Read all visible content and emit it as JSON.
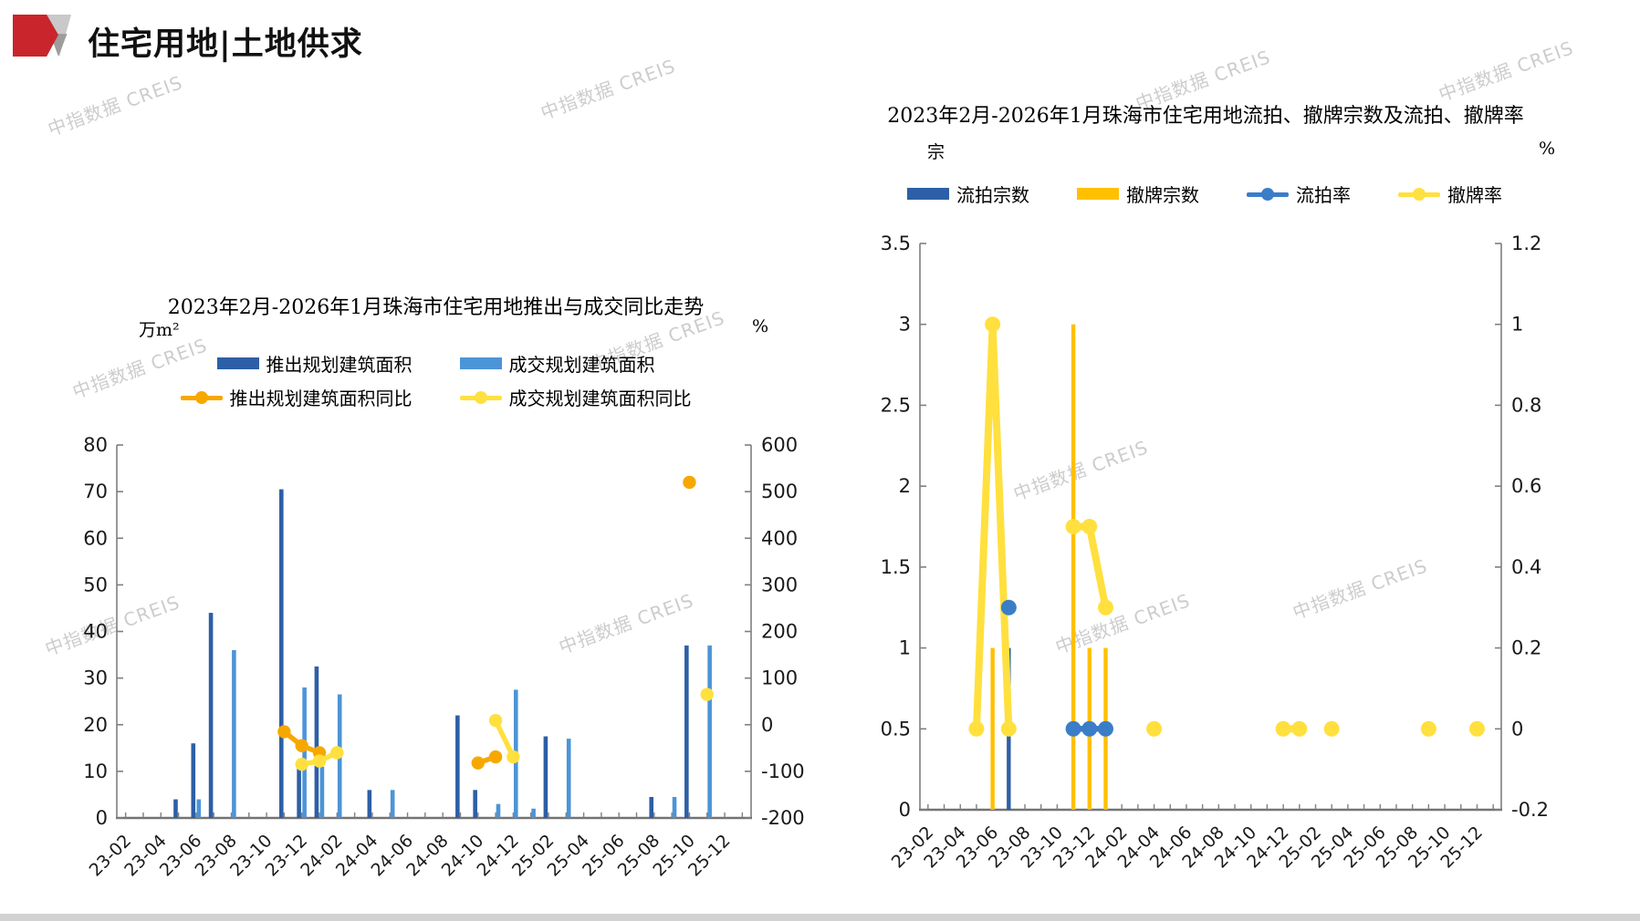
{
  "page": {
    "header_title": "住宅用地|土地供求",
    "watermark_text": "中指数据 CREIS"
  },
  "chart_data": [
    {
      "id": "supply-transaction",
      "type": "bar+line combo",
      "title": "2023年2月-2026年1月珠海市住宅用地推出与成交同比走势",
      "unit_left": "万m²",
      "unit_right": "%",
      "x_first": "23-02",
      "months": 36,
      "x_ticks": [
        "23-02",
        "23-04",
        "23-06",
        "23-08",
        "23-10",
        "23-12",
        "24-02",
        "24-04",
        "24-06",
        "24-08",
        "24-10",
        "24-12",
        "25-02",
        "25-04",
        "25-06",
        "25-08",
        "25-10",
        "25-12"
      ],
      "y_left": {
        "min": 0,
        "max": 80,
        "step": 10
      },
      "y_right": {
        "min": -200,
        "max": 600,
        "step": 100
      },
      "legend": [
        {
          "label": "推出规划建筑面积",
          "marker": "bar",
          "color": "#2d5fa6",
          "row": 0
        },
        {
          "label": "成交规划建筑面积",
          "marker": "bar",
          "color": "#4c94d8",
          "row": 0
        },
        {
          "label": "推出规划建筑面积同比",
          "marker": "line",
          "color": "#f7a800",
          "row": 1
        },
        {
          "label": "成交规划建筑面积同比",
          "marker": "line",
          "color": "#ffe03e",
          "row": 1
        }
      ],
      "series": [
        {
          "name": "推出规划建筑面积",
          "kind": "bar",
          "axis": "left",
          "color": "#2d5fa6",
          "pair": "L",
          "data": [
            [
              "23-05",
              4
            ],
            [
              "23-06",
              16
            ],
            [
              "23-07",
              44
            ],
            [
              "23-11",
              70.5
            ],
            [
              "23-12",
              12
            ],
            [
              "24-01",
              32.5
            ],
            [
              "24-04",
              6
            ],
            [
              "24-09",
              22
            ],
            [
              "24-10",
              6
            ],
            [
              "25-02",
              17.5
            ],
            [
              "25-08",
              4.5
            ],
            [
              "25-10",
              37
            ]
          ]
        },
        {
          "name": "成交规划建筑面积",
          "kind": "bar",
          "axis": "left",
          "color": "#4c94d8",
          "pair": "R",
          "data": [
            [
              "23-06",
              4
            ],
            [
              "23-08",
              36
            ],
            [
              "23-12",
              28
            ],
            [
              "24-01",
              11
            ],
            [
              "24-02",
              26.5
            ],
            [
              "24-05",
              6
            ],
            [
              "24-11",
              3
            ],
            [
              "24-12",
              27.5
            ],
            [
              "25-01",
              2
            ],
            [
              "25-03",
              17
            ],
            [
              "25-09",
              4.5
            ],
            [
              "25-11",
              37
            ]
          ]
        },
        {
          "name": "推出规划建筑面积同比",
          "kind": "line",
          "axis": "right",
          "color": "#f7a800",
          "width": 5.5,
          "dot": 7.2,
          "segments": [
            [
              [
                "23-11",
                -15
              ],
              [
                "23-12",
                -45
              ],
              [
                "24-01",
                -60
              ]
            ],
            [
              [
                "24-10",
                -82
              ],
              [
                "24-11",
                -69
              ]
            ],
            [
              [
                "25-10",
                520
              ]
            ]
          ]
        },
        {
          "name": "成交规划建筑面积同比",
          "kind": "line",
          "axis": "right",
          "color": "#ffe03e",
          "width": 5.5,
          "dot": 7.2,
          "segments": [
            [
              [
                "23-12",
                -85
              ],
              [
                "24-01",
                -78
              ],
              [
                "24-02",
                -60
              ]
            ],
            [
              [
                "24-11",
                9
              ],
              [
                "24-12",
                -69
              ]
            ],
            [
              [
                "25-11",
                65
              ]
            ]
          ]
        }
      ]
    },
    {
      "id": "auction-withdrawal",
      "type": "bar+line combo",
      "title": "2023年2月-2026年1月珠海市住宅用地流拍、撤牌宗数及流拍、撤牌率",
      "unit_left": "宗",
      "unit_right": "%",
      "x_first": "23-02",
      "months": 36,
      "x_ticks": [
        "23-02",
        "23-04",
        "23-06",
        "23-08",
        "23-10",
        "23-12",
        "24-02",
        "24-04",
        "24-06",
        "24-08",
        "24-10",
        "24-12",
        "25-02",
        "25-04",
        "25-06",
        "25-08",
        "25-10",
        "25-12"
      ],
      "y_left": {
        "min": 0,
        "max": 3.5,
        "step": 0.5
      },
      "y_right": {
        "min": -0.2,
        "max": 1.2,
        "step": 0.2
      },
      "legend": [
        {
          "label": "流拍宗数",
          "marker": "bar",
          "color": "#2d5fa6",
          "row": 0
        },
        {
          "label": "撤牌宗数",
          "marker": "bar",
          "color": "#ffc000",
          "row": 0
        },
        {
          "label": "流拍率",
          "marker": "line",
          "color": "#3c7dc8",
          "row": 0
        },
        {
          "label": "撤牌率",
          "marker": "line",
          "color": "#ffe03e",
          "row": 0
        }
      ],
      "series": [
        {
          "name": "撤牌宗数",
          "kind": "bar",
          "axis": "left",
          "color": "#ffc000",
          "data": [
            [
              "23-06",
              1
            ],
            [
              "23-11",
              3
            ],
            [
              "23-12",
              1
            ],
            [
              "24-01",
              1
            ]
          ]
        },
        {
          "name": "流拍宗数",
          "kind": "bar",
          "axis": "left",
          "color": "#2d5fa6",
          "data": [
            [
              "23-07",
              1
            ]
          ]
        },
        {
          "name": "撤牌率",
          "kind": "line",
          "axis": "right",
          "color": "#ffe03e",
          "width": 8,
          "dot": 8.5,
          "segments": [
            [
              [
                "23-05",
                0
              ],
              [
                "23-06",
                1.0
              ],
              [
                "23-07",
                0
              ]
            ],
            [
              [
                "23-11",
                0.5
              ],
              [
                "23-12",
                0.5
              ],
              [
                "24-01",
                0.3
              ]
            ],
            [
              [
                "24-04",
                0
              ]
            ],
            [
              [
                "24-12",
                0
              ],
              [
                "25-01",
                0
              ]
            ],
            [
              [
                "25-03",
                0
              ]
            ],
            [
              [
                "25-09",
                0
              ]
            ],
            [
              [
                "25-12",
                0
              ]
            ]
          ]
        },
        {
          "name": "流拍率",
          "kind": "line",
          "axis": "right",
          "color": "#3c7dc8",
          "width": 6.5,
          "dot": 8.5,
          "segments": [
            [
              [
                "23-07",
                0.3
              ]
            ],
            [
              [
                "23-11",
                0
              ],
              [
                "23-12",
                0
              ],
              [
                "24-01",
                0
              ]
            ]
          ]
        }
      ]
    }
  ]
}
